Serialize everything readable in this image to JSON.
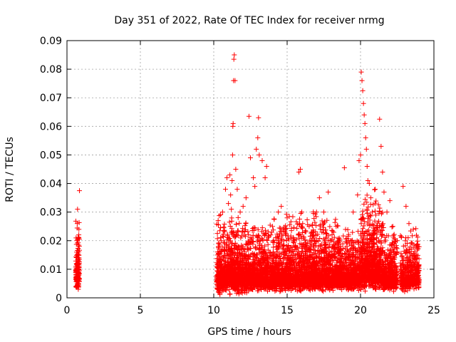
{
  "chart_data": {
    "type": "scatter",
    "title": "Day 351 of 2022, Rate Of TEC Index for receiver nrmg",
    "xlabel": "GPS time / hours",
    "ylabel": "ROTI / TECUs",
    "xlim": [
      0,
      25
    ],
    "ylim": [
      0,
      0.09
    ],
    "xticks": [
      "0",
      "5",
      "10",
      "15",
      "20",
      "25"
    ],
    "yticks": [
      "0",
      "0.01",
      "0.02",
      "0.03",
      "0.04",
      "0.05",
      "0.06",
      "0.07",
      "0.08",
      "0.09"
    ],
    "grid": true,
    "marker": "+",
    "color": "#ff0000",
    "series": [
      {
        "values": [
          [
            0.6,
            0.004
          ],
          [
            0.62,
            0.008
          ],
          [
            0.64,
            0.012
          ],
          [
            0.66,
            0.016
          ],
          [
            0.68,
            0.02
          ],
          [
            0.7,
            0.026
          ],
          [
            0.72,
            0.031
          ],
          [
            0.74,
            0.01
          ],
          [
            0.76,
            0.006
          ],
          [
            0.78,
            0.005
          ],
          [
            0.8,
            0.009
          ],
          [
            0.82,
            0.014
          ],
          [
            0.85,
            0.0375
          ],
          [
            10.3,
            0.012
          ],
          [
            10.5,
            0.02
          ],
          [
            10.6,
            0.03
          ],
          [
            10.8,
            0.038
          ],
          [
            10.9,
            0.042
          ],
          [
            11.0,
            0.033
          ],
          [
            11.1,
            0.043
          ],
          [
            11.15,
            0.036
          ],
          [
            11.2,
            0.031
          ],
          [
            11.25,
            0.041
          ],
          [
            11.28,
            0.05
          ],
          [
            11.3,
            0.06
          ],
          [
            11.32,
            0.061
          ],
          [
            11.35,
            0.076
          ],
          [
            11.37,
            0.0835
          ],
          [
            11.4,
            0.085
          ],
          [
            11.45,
            0.076
          ],
          [
            11.5,
            0.045
          ],
          [
            11.6,
            0.038
          ],
          [
            11.8,
            0.03
          ],
          [
            12.0,
            0.032
          ],
          [
            12.2,
            0.035
          ],
          [
            12.4,
            0.0635
          ],
          [
            12.5,
            0.049
          ],
          [
            12.7,
            0.042
          ],
          [
            12.8,
            0.039
          ],
          [
            12.9,
            0.052
          ],
          [
            13.0,
            0.056
          ],
          [
            13.05,
            0.063
          ],
          [
            13.1,
            0.05
          ],
          [
            13.3,
            0.048
          ],
          [
            13.5,
            0.042
          ],
          [
            13.6,
            0.046
          ],
          [
            14.0,
            0.025
          ],
          [
            14.4,
            0.03
          ],
          [
            14.6,
            0.032
          ],
          [
            15.0,
            0.028
          ],
          [
            15.5,
            0.02
          ],
          [
            15.8,
            0.044
          ],
          [
            15.9,
            0.045
          ],
          [
            16.0,
            0.03
          ],
          [
            16.5,
            0.025
          ],
          [
            16.8,
            0.022
          ],
          [
            17.0,
            0.03
          ],
          [
            17.2,
            0.035
          ],
          [
            17.5,
            0.03
          ],
          [
            17.8,
            0.037
          ],
          [
            18.0,
            0.02
          ],
          [
            18.5,
            0.02
          ],
          [
            18.9,
            0.0455
          ],
          [
            19.2,
            0.02
          ],
          [
            19.5,
            0.03
          ],
          [
            19.8,
            0.036
          ],
          [
            19.9,
            0.048
          ],
          [
            20.0,
            0.05
          ],
          [
            20.05,
            0.079
          ],
          [
            20.1,
            0.076
          ],
          [
            20.15,
            0.0725
          ],
          [
            20.2,
            0.068
          ],
          [
            20.25,
            0.064
          ],
          [
            20.3,
            0.061
          ],
          [
            20.35,
            0.056
          ],
          [
            20.4,
            0.052
          ],
          [
            20.45,
            0.046
          ],
          [
            20.5,
            0.041
          ],
          [
            20.6,
            0.04
          ],
          [
            20.7,
            0.035
          ],
          [
            20.8,
            0.03
          ],
          [
            21.0,
            0.038
          ],
          [
            21.3,
            0.0625
          ],
          [
            21.4,
            0.053
          ],
          [
            21.5,
            0.044
          ],
          [
            21.6,
            0.037
          ],
          [
            21.8,
            0.03
          ],
          [
            22.0,
            0.034
          ],
          [
            22.2,
            0.025
          ],
          [
            22.5,
            0.02
          ],
          [
            22.9,
            0.039
          ],
          [
            23.1,
            0.032
          ],
          [
            23.3,
            0.026
          ],
          [
            23.6,
            0.024
          ],
          [
            23.9,
            0.018
          ]
        ]
      }
    ],
    "bands": [
      {
        "x": [
          0.6,
          0.85
        ],
        "ylow": [
          0.002,
          0.007
        ],
        "yhigh": [
          0.008,
          0.03
        ],
        "n": 140
      },
      {
        "x": [
          10.2,
          11.0
        ],
        "ylow": [
          0.001,
          0.006
        ],
        "yhigh": [
          0.006,
          0.032
        ],
        "n": 380
      },
      {
        "x": [
          11.0,
          12.5
        ],
        "ylow": [
          0.001,
          0.006
        ],
        "yhigh": [
          0.008,
          0.03
        ],
        "n": 700
      },
      {
        "x": [
          12.5,
          14.0
        ],
        "ylow": [
          0.002,
          0.006
        ],
        "yhigh": [
          0.006,
          0.028
        ],
        "n": 650
      },
      {
        "x": [
          14.0,
          15.5
        ],
        "ylow": [
          0.002,
          0.006
        ],
        "yhigh": [
          0.006,
          0.03
        ],
        "n": 650
      },
      {
        "x": [
          15.5,
          17.0
        ],
        "ylow": [
          0.002,
          0.006
        ],
        "yhigh": [
          0.006,
          0.032
        ],
        "n": 650
      },
      {
        "x": [
          17.0,
          18.5
        ],
        "ylow": [
          0.002,
          0.006
        ],
        "yhigh": [
          0.006,
          0.03
        ],
        "n": 650
      },
      {
        "x": [
          18.5,
          20.0
        ],
        "ylow": [
          0.002,
          0.006
        ],
        "yhigh": [
          0.006,
          0.026
        ],
        "n": 650
      },
      {
        "x": [
          20.0,
          21.5
        ],
        "ylow": [
          0.002,
          0.007
        ],
        "yhigh": [
          0.01,
          0.038
        ],
        "n": 750
      },
      {
        "x": [
          21.5,
          22.5
        ],
        "ylow": [
          0.002,
          0.006
        ],
        "yhigh": [
          0.006,
          0.026
        ],
        "n": 420
      },
      {
        "x": [
          22.7,
          24.0
        ],
        "ylow": [
          0.002,
          0.006
        ],
        "yhigh": [
          0.006,
          0.025
        ],
        "n": 450
      }
    ]
  }
}
